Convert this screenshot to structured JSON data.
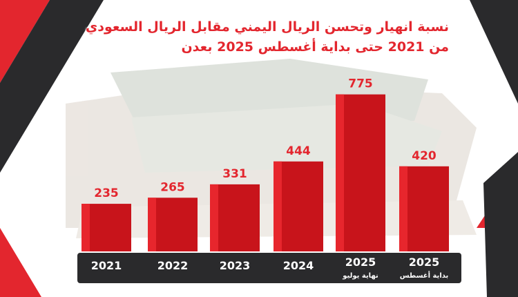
{
  "chart_data": {
    "type": "bar",
    "title": "نسبة انهيار وتحسن الريال اليمني مقابل الريال السعودي",
    "subtitle": "من 2021  حتى بداية أغسطس 2025 بعدن",
    "categories": [
      "2021",
      "2022",
      "2023",
      "2024",
      "2025",
      "2025"
    ],
    "category_sublabels": [
      "",
      "",
      "",
      "",
      "نهاية يوليو",
      "بداية أغسطس"
    ],
    "values": [
      235,
      265,
      331,
      444,
      775,
      420
    ],
    "value_labels": [
      "235",
      "265",
      "331",
      "444",
      "775",
      "420"
    ],
    "ylim": [
      0,
      900
    ],
    "grid": false,
    "colors": {
      "bar": "#c8141b",
      "bar_highlight": "#e7262d",
      "label": "#e3262e",
      "axis_band": "#2a2a2c",
      "axis_text": "#ffffff",
      "accent_red": "#e3262e",
      "accent_dark": "#2a2a2c"
    }
  }
}
